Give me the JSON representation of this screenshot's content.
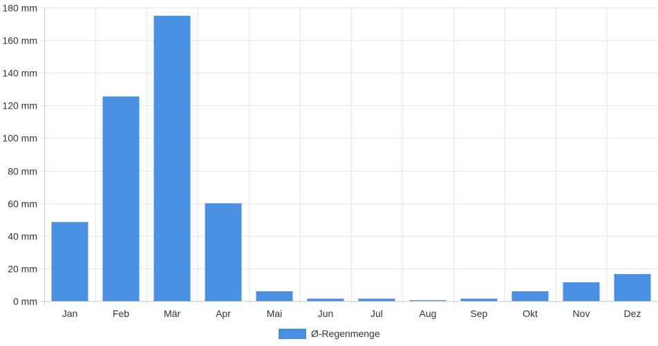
{
  "chart_data": {
    "type": "bar",
    "categories": [
      "Jan",
      "Feb",
      "Mär",
      "Apr",
      "Mai",
      "Jun",
      "Jul",
      "Aug",
      "Sep",
      "Okt",
      "Nov",
      "Dez"
    ],
    "series": [
      {
        "name": "Ø-Regenmenge",
        "color": "#4a90e2",
        "values": [
          48.5,
          125.5,
          175,
          60,
          6,
          1.5,
          1.5,
          0.5,
          1.5,
          6,
          11.5,
          16.5
        ]
      }
    ],
    "ylim": [
      0,
      180
    ],
    "yticks": [
      0,
      20,
      40,
      60,
      80,
      100,
      120,
      140,
      160,
      180
    ],
    "ytick_labels": [
      "0 mm",
      "20 mm",
      "40 mm",
      "60 mm",
      "80 mm",
      "100 mm",
      "120 mm",
      "140 mm",
      "160 mm",
      "180 mm"
    ],
    "grid": true,
    "legend_position": "bottom-center"
  }
}
